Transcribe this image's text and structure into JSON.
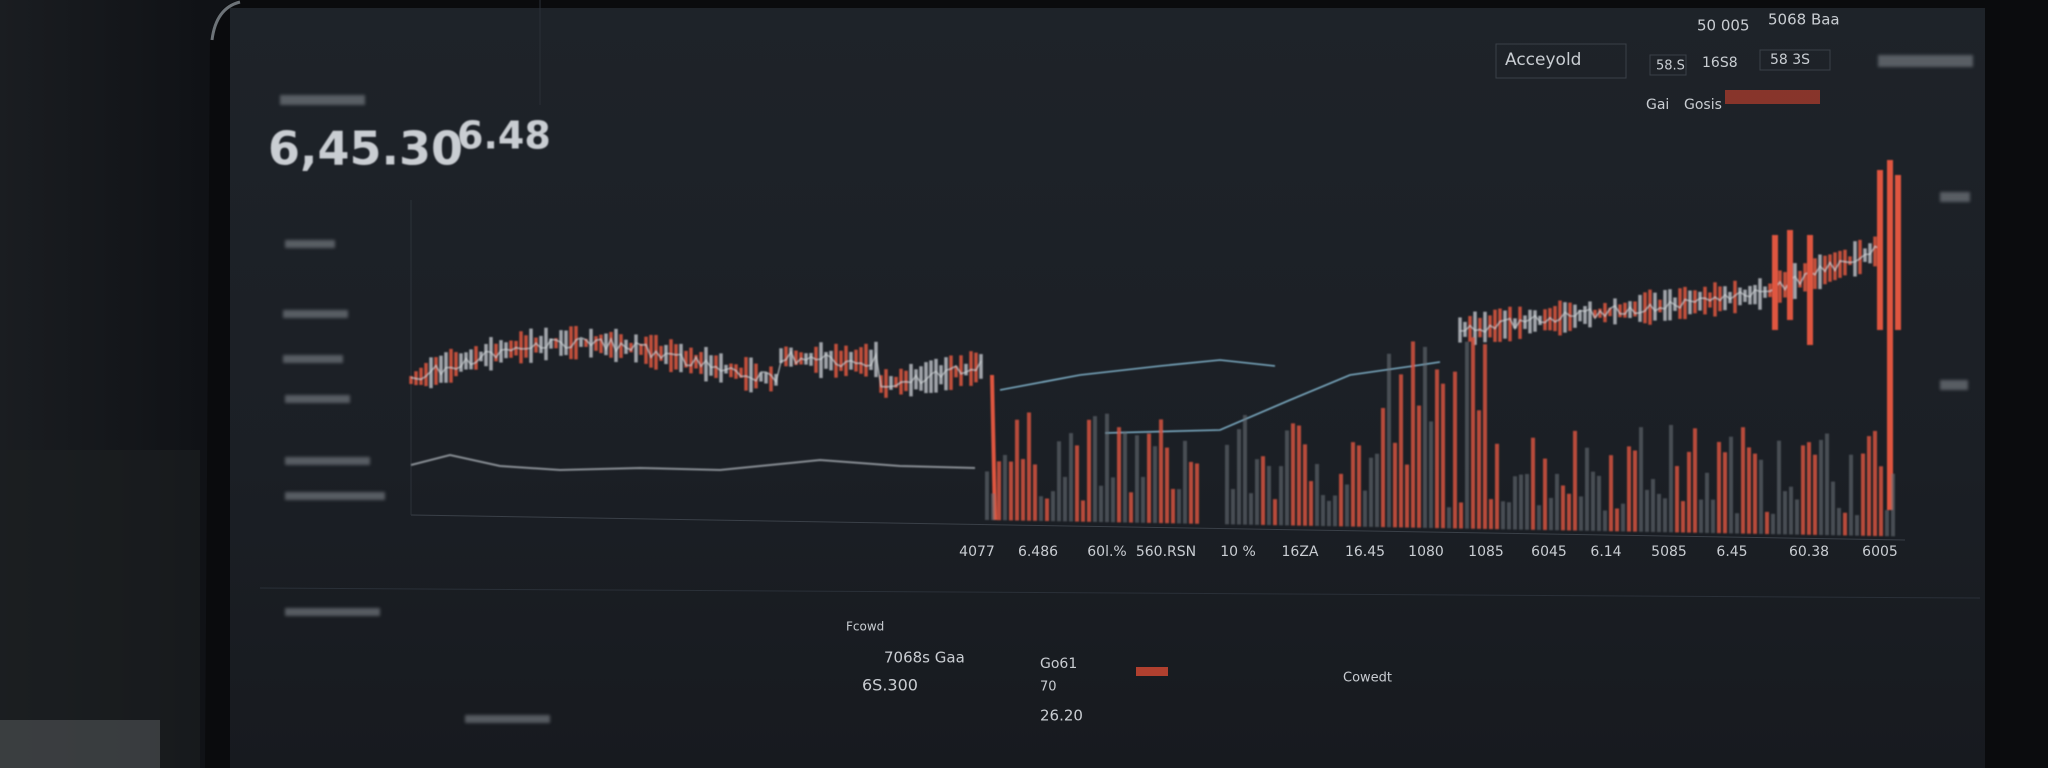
{
  "header": {
    "big_value": "6,45.30",
    "small_value": "6.48"
  },
  "top_panel": {
    "label": "Acceyold",
    "stat_a": "50 005",
    "stat_b": "5068 Baa",
    "cell_a": "58.S",
    "cell_b": "16S8",
    "cell_c": "58 3S",
    "tab_a": "Gai",
    "tab_b": "Gosis"
  },
  "x_labels": [
    "4077",
    "6.486",
    "60l.%",
    "560.RSN",
    "10 %",
    "16ZA",
    "16.45",
    "1080",
    "1085",
    "6045",
    "6.14",
    "5085",
    "6.45",
    "60.38",
    "6005"
  ],
  "bottom_panel": {
    "caption": "Fcowd",
    "stat_title": "7068s Gaa",
    "stat_value": "6S.300",
    "side_label": "Go61",
    "side_value": "70",
    "side_total": "26.20",
    "right_label": "Cowedt"
  }
}
